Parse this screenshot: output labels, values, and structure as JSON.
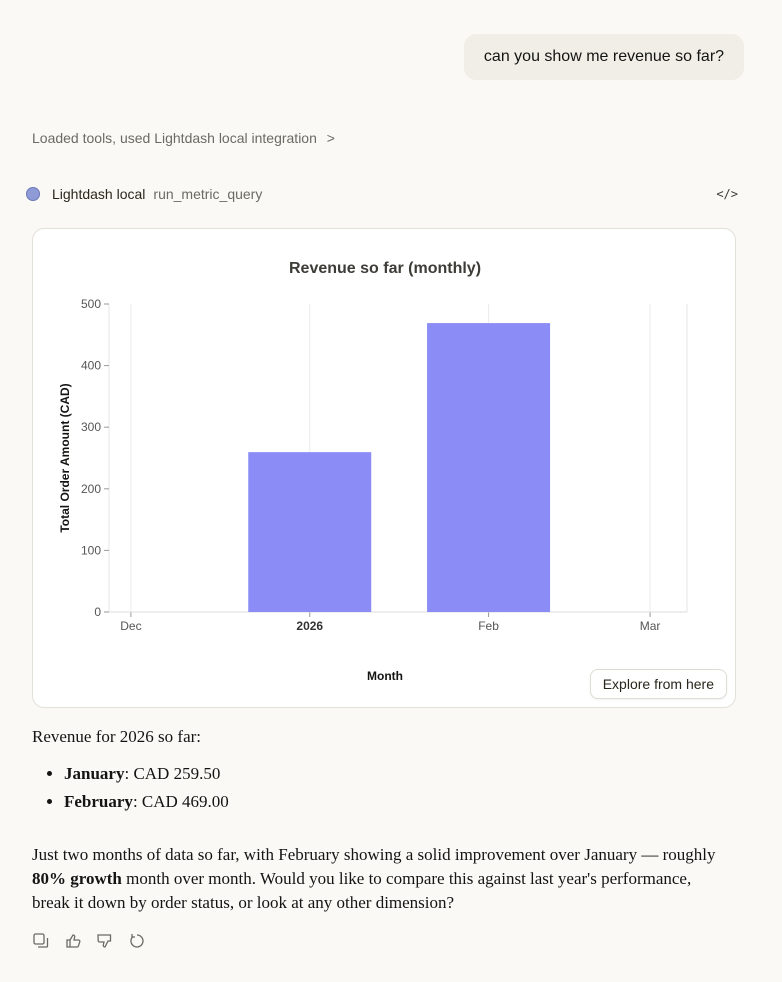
{
  "user_message": "can you show me revenue so far?",
  "tools_summary": "Loaded tools, used Lightdash local integration",
  "tools_chevron": ">",
  "tool_call": {
    "integration": "Lightdash local",
    "function": "run_metric_query",
    "code_icon": "</>"
  },
  "explore_button": "Explore from here",
  "chart_data": {
    "type": "bar",
    "title": "Revenue so far (monthly)",
    "xlabel": "Month",
    "ylabel": "Total Order Amount (CAD)",
    "x": [
      "2026-01",
      "2026-02"
    ],
    "values": [
      259.5,
      469.0
    ],
    "ylim": [
      0,
      500
    ],
    "yticks": [
      0,
      100,
      200,
      300,
      400,
      500
    ],
    "xticks": [
      {
        "date": "2025-12",
        "label": "Dec",
        "bold": false
      },
      {
        "date": "2026-01",
        "label": "2026",
        "bold": true
      },
      {
        "date": "2026-02",
        "label": "Feb",
        "bold": false
      },
      {
        "date": "2026-03",
        "label": "Mar",
        "bold": false
      }
    ],
    "bar_color": "#8b8cf5",
    "grid": "vertical"
  },
  "response": {
    "intro": "Revenue for 2026 so far:",
    "items": [
      {
        "label": "January",
        "value": ": CAD 259.50"
      },
      {
        "label": "February",
        "value": ": CAD 469.00"
      }
    ],
    "para_a": "Just two months of data so far, with February showing a solid improvement over January — roughly ",
    "para_bold": "80% growth",
    "para_b": " month over month. Would you like to compare this against last year's performance, break it down by order status, or look at any other dimension?"
  },
  "actions": [
    "copy-icon",
    "thumbs-up-icon",
    "thumbs-down-icon",
    "retry-icon"
  ]
}
